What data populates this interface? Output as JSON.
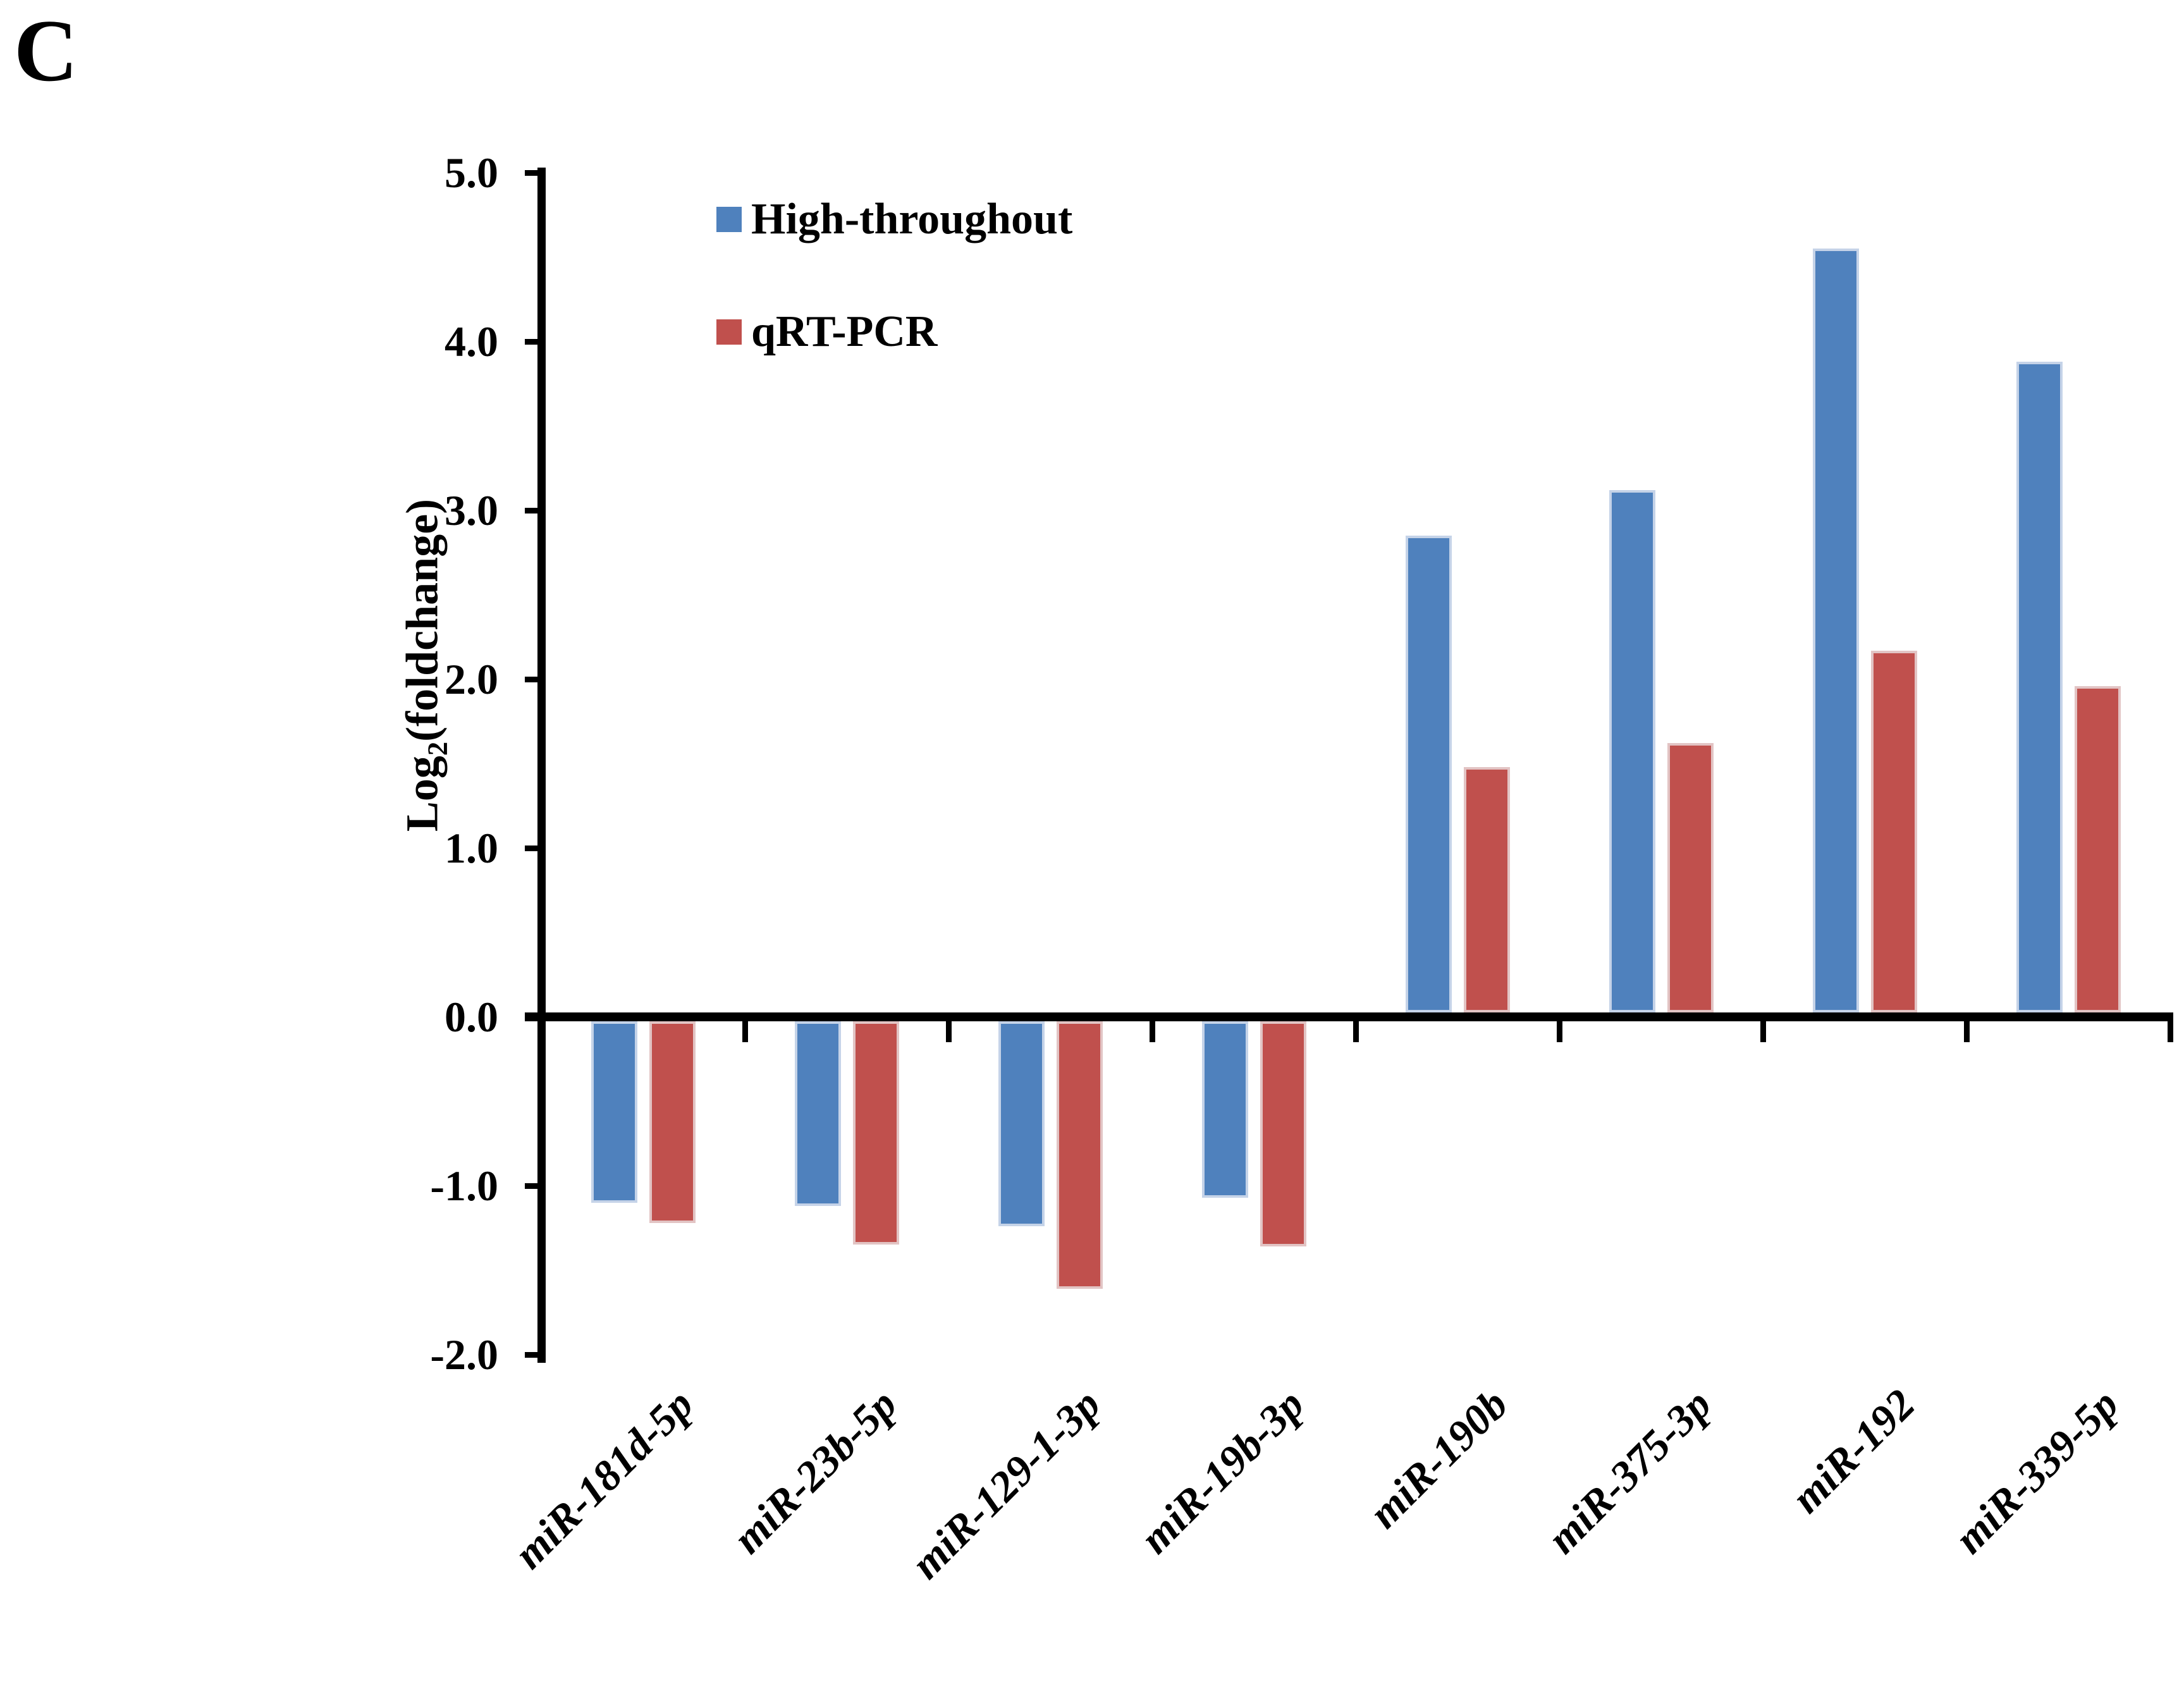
{
  "panel_label": "C",
  "legend": [
    {
      "label": "High-throughout",
      "color": "#4F81BD"
    },
    {
      "label": "qRT-PCR",
      "color": "#C0504D"
    }
  ],
  "y_axis": {
    "title_main": "Log",
    "title_sub": "2",
    "title_rest": "(foldchange)",
    "tick_labels": [
      "5.0",
      "4.0",
      "3.0",
      "2.0",
      "1.0",
      "0.0",
      "-1.0",
      "-2.0"
    ]
  },
  "chart_data": {
    "type": "bar",
    "title": "",
    "xlabel": "",
    "ylabel": "Log2(foldchange)",
    "ylim": [
      -2.0,
      5.0
    ],
    "ytick_step": 1.0,
    "grid": false,
    "legend_position": "inside-top-left",
    "categories": [
      "miR-181d-5p",
      "miR-23b-5p",
      "miR-129-1-3p",
      "miR-19b-3p",
      "miR-190b",
      "miR-375-3p",
      "miR-192",
      "miR-339-5p"
    ],
    "series": [
      {
        "name": "High-throughout",
        "color": "#4F81BD",
        "edge_color": "#C5D3E8",
        "values": [
          -1.1,
          -1.12,
          -1.24,
          -1.07,
          2.85,
          3.12,
          4.55,
          3.88
        ]
      },
      {
        "name": "qRT-PCR",
        "color": "#C0504D",
        "edge_color": "#E2C4C4",
        "values": [
          -1.22,
          -1.35,
          -1.61,
          -1.36,
          1.48,
          1.62,
          2.17,
          1.96
        ]
      }
    ]
  }
}
